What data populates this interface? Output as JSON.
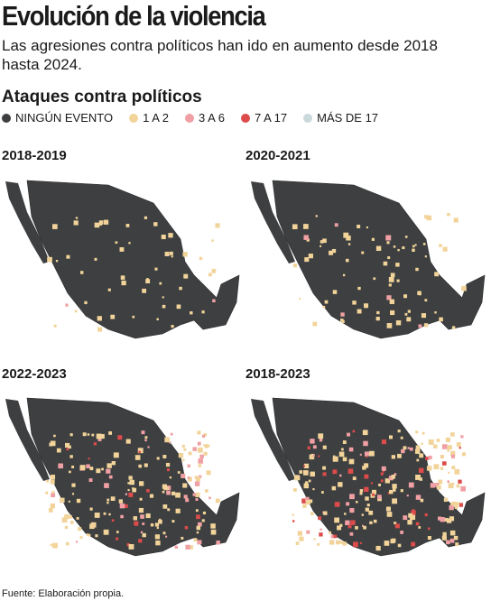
{
  "header": {
    "title": "Evolución de la violencia",
    "subtitle": "Las agresiones contra políticos han ido en aumento desde 2018 hasta 2024."
  },
  "legend": {
    "title": "Ataques contra políticos",
    "items": [
      {
        "label": "NINGÚN EVENTO",
        "color": "#3d3f40"
      },
      {
        "label": "1 A 2",
        "color": "#f2d49a"
      },
      {
        "label": "3 A 6",
        "color": "#f0a0a4"
      },
      {
        "label": "7 A 17",
        "color": "#dd4b4b"
      },
      {
        "label": "MÁS DE 17",
        "color": "#c9d9dc"
      }
    ]
  },
  "panels": [
    {
      "label": "2018-2019"
    },
    {
      "label": "2020-2021"
    },
    {
      "label": "2022-2023"
    },
    {
      "label": "2018-2023"
    }
  ],
  "footer": {
    "source": "Fuente: Elaboración propia."
  }
}
